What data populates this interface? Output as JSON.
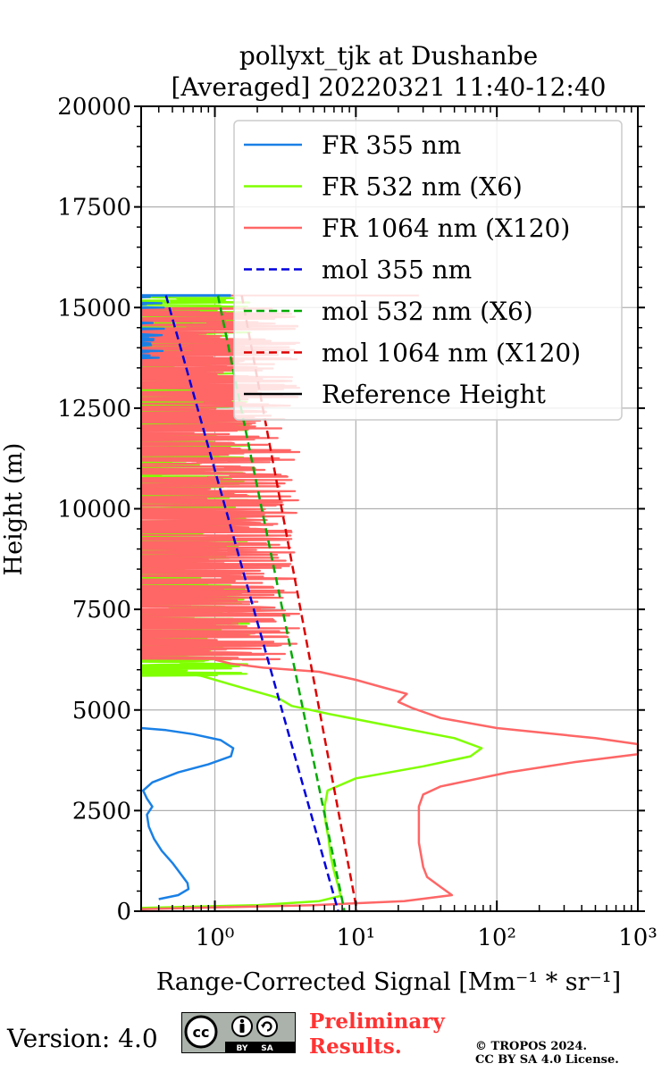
{
  "chart_data": {
    "type": "line",
    "title_line1": "pollyxt_tjk at Dushanbe",
    "title_line2": "[Averaged] 20220321 11:40-12:40",
    "xlabel": "Range-Corrected Signal [Mm⁻¹ * sr⁻¹]",
    "ylabel": "Height (m)",
    "xscale": "log",
    "xlim": [
      0.3,
      1000
    ],
    "ylim": [
      0,
      20000
    ],
    "xticks": [
      {
        "value": 1,
        "label": "10⁰"
      },
      {
        "value": 10,
        "label": "10¹"
      },
      {
        "value": 100,
        "label": "10²"
      },
      {
        "value": 1000,
        "label": "10³"
      }
    ],
    "yticks": [
      {
        "value": 0,
        "label": "0"
      },
      {
        "value": 2500,
        "label": "2500"
      },
      {
        "value": 5000,
        "label": "5000"
      },
      {
        "value": 7500,
        "label": "7500"
      },
      {
        "value": 10000,
        "label": "10000"
      },
      {
        "value": 12500,
        "label": "12500"
      },
      {
        "value": 15000,
        "label": "15000"
      },
      {
        "value": 17500,
        "label": "17500"
      },
      {
        "value": 20000,
        "label": "20000"
      }
    ],
    "grid": true,
    "legend_position": "upper-right",
    "series": [
      {
        "name": "FR 355 nm",
        "color": "#1a80e6",
        "style": "solid",
        "points": [
          [
            0.4,
            300
          ],
          [
            0.55,
            400
          ],
          [
            0.65,
            550
          ],
          [
            0.64,
            700
          ],
          [
            0.58,
            900
          ],
          [
            0.5,
            1200
          ],
          [
            0.42,
            1500
          ],
          [
            0.37,
            1800
          ],
          [
            0.34,
            2100
          ],
          [
            0.33,
            2400
          ],
          [
            0.36,
            2600
          ],
          [
            0.33,
            2800
          ],
          [
            0.31,
            3000
          ],
          [
            0.36,
            3200
          ],
          [
            0.55,
            3450
          ],
          [
            0.9,
            3650
          ],
          [
            1.3,
            3850
          ],
          [
            1.35,
            4050
          ],
          [
            1.1,
            4250
          ],
          [
            0.7,
            4400
          ],
          [
            0.45,
            4500
          ],
          [
            0.3,
            4550
          ]
        ]
      },
      {
        "name": "FR 532 nm (X6)",
        "color": "#80ff00",
        "style": "solid",
        "points": [
          [
            0.3,
            80
          ],
          [
            2.0,
            150
          ],
          [
            5.5,
            250
          ],
          [
            7.8,
            380
          ],
          [
            7.4,
            700
          ],
          [
            7.0,
            1000
          ],
          [
            6.6,
            1400
          ],
          [
            6.4,
            1800
          ],
          [
            6.1,
            2200
          ],
          [
            6.0,
            2600
          ],
          [
            6.3,
            3000
          ],
          [
            10,
            3300
          ],
          [
            30,
            3600
          ],
          [
            65,
            3850
          ],
          [
            78,
            4050
          ],
          [
            50,
            4300
          ],
          [
            15,
            4650
          ],
          [
            6.5,
            4900
          ],
          [
            3.5,
            5100
          ],
          [
            2.8,
            5300
          ],
          [
            1.4,
            5600
          ],
          [
            0.8,
            5850
          ],
          [
            0.5,
            5950
          ],
          [
            0.3,
            6000
          ]
        ]
      },
      {
        "name": "FR 1064 nm (X120)",
        "color": "#ff6666",
        "style": "solid",
        "points": [
          [
            0.3,
            50
          ],
          [
            5,
            150
          ],
          [
            22,
            250
          ],
          [
            48,
            400
          ],
          [
            40,
            600
          ],
          [
            32,
            850
          ],
          [
            30,
            1100
          ],
          [
            29,
            1400
          ],
          [
            28,
            1700
          ],
          [
            28,
            2000
          ],
          [
            28,
            2300
          ],
          [
            28,
            2600
          ],
          [
            30,
            2900
          ],
          [
            40,
            3100
          ],
          [
            120,
            3450
          ],
          [
            350,
            3700
          ],
          [
            1000,
            3900
          ],
          [
            1000,
            4150
          ],
          [
            500,
            4300
          ],
          [
            100,
            4550
          ],
          [
            40,
            4800
          ],
          [
            25,
            5050
          ],
          [
            20,
            5200
          ],
          [
            23,
            5400
          ],
          [
            16,
            5550
          ],
          [
            10,
            5750
          ],
          [
            5.5,
            5950
          ],
          [
            2.2,
            6050
          ],
          [
            1.3,
            6150
          ],
          [
            1.0,
            6250
          ]
        ]
      },
      {
        "name": "mol 355 nm",
        "color": "#0000dd",
        "style": "dashed",
        "points": [
          [
            0.45,
            15300
          ],
          [
            7.5,
            0
          ]
        ]
      },
      {
        "name": "mol 532 nm (X6)",
        "color": "#00aa00",
        "style": "dashed",
        "points": [
          [
            1.05,
            15300
          ],
          [
            8.3,
            0
          ]
        ]
      },
      {
        "name": "mol 1064 nm (X120)",
        "color": "#dd0000",
        "style": "dashed",
        "points": [
          [
            1.55,
            15300
          ],
          [
            10.2,
            0
          ]
        ]
      },
      {
        "name": "Reference Height",
        "color": "#000000",
        "style": "solid",
        "points": []
      }
    ],
    "noise_region": {
      "y_min": 6250,
      "y_max": 15300
    }
  },
  "footer": {
    "version": "Version: 4.0",
    "preliminary_line1": "Preliminary",
    "preliminary_line2": "Results.",
    "copyright_line1": "© TROPOS 2024.",
    "copyright_line2": "CC BY SA 4.0 License.",
    "cc_by": "BY",
    "cc_sa": "SA",
    "cc_logo": "cc"
  }
}
